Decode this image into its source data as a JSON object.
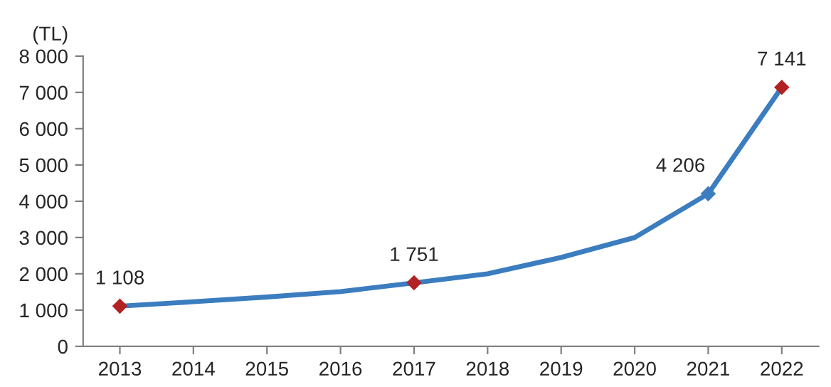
{
  "chart_data": {
    "type": "line",
    "ylabel": "(TL)",
    "categories": [
      "2013",
      "2014",
      "2015",
      "2016",
      "2017",
      "2018",
      "2019",
      "2020",
      "2021",
      "2022"
    ],
    "series": [
      {
        "color": "#3b7dbf",
        "values": [
          1108,
          1230,
          1360,
          1510,
          1751,
          2000,
          2450,
          3000,
          4206,
          7141
        ],
        "value_labels": [
          "1 108",
          null,
          null,
          null,
          "1 751",
          null,
          null,
          null,
          "4 206",
          "7 141"
        ]
      },
      {
        "type": "scatter",
        "marker": "diamond",
        "values": [
          1108,
          null,
          null,
          null,
          1751,
          null,
          null,
          null,
          4206,
          7141
        ],
        "colors": [
          "#b22222",
          null,
          null,
          null,
          "#b22222",
          null,
          null,
          null,
          "#3b7dbf",
          "#b22222"
        ]
      }
    ],
    "ylim": [
      0,
      8000
    ],
    "yticks": [
      0,
      {
        "value": 1000,
        "label": "1 000"
      },
      {
        "value": 2000,
        "label": "2 000"
      },
      {
        "value": 3000,
        "label": "3 000"
      },
      {
        "value": 4000,
        "label": "4 000"
      },
      {
        "value": 5000,
        "label": "5 000"
      },
      {
        "value": 6000,
        "label": "6 000"
      },
      {
        "value": 7000,
        "label": "7 000"
      },
      {
        "value": 8000,
        "label": "8 000"
      }
    ],
    "grid": false,
    "legend": false,
    "marker": "none",
    "line_style": "solid"
  }
}
